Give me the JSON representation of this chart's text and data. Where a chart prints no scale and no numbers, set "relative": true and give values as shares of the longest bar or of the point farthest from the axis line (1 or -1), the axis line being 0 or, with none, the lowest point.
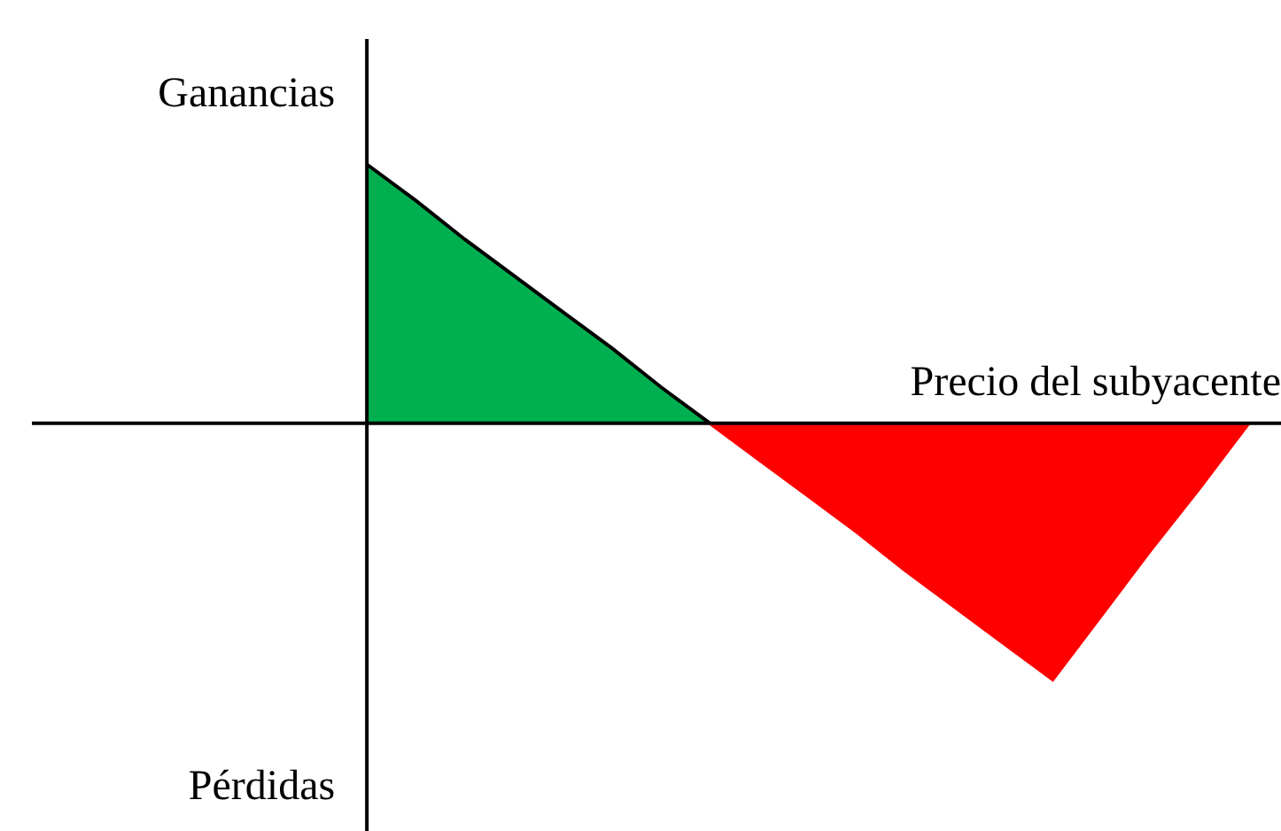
{
  "chart_data": {
    "type": "area",
    "relative": true,
    "xlabel": "Precio del subyacente",
    "annotations": [
      "Ganancias",
      "Pérdidas"
    ],
    "categories": [
      null,
      null,
      null,
      null,
      null,
      null,
      null,
      null,
      null,
      null,
      null,
      null,
      null,
      null,
      null,
      null,
      null,
      null,
      null
    ],
    "series": [
      {
        "color": "#00b050",
        "values": [
          1,
          0.86,
          0.71,
          0.57,
          0.43,
          0.29,
          0.14,
          0,
          null,
          null,
          null,
          null,
          null,
          null,
          null,
          null,
          null,
          null,
          null
        ]
      },
      {
        "color": "#ff0000",
        "values": [
          null,
          null,
          null,
          null,
          null,
          null,
          null,
          0,
          -0.14,
          -0.28,
          -0.42,
          -0.57,
          -0.71,
          -0.85,
          -0.99,
          -0.74,
          -0.49,
          -0.25,
          0
        ]
      }
    ]
  }
}
